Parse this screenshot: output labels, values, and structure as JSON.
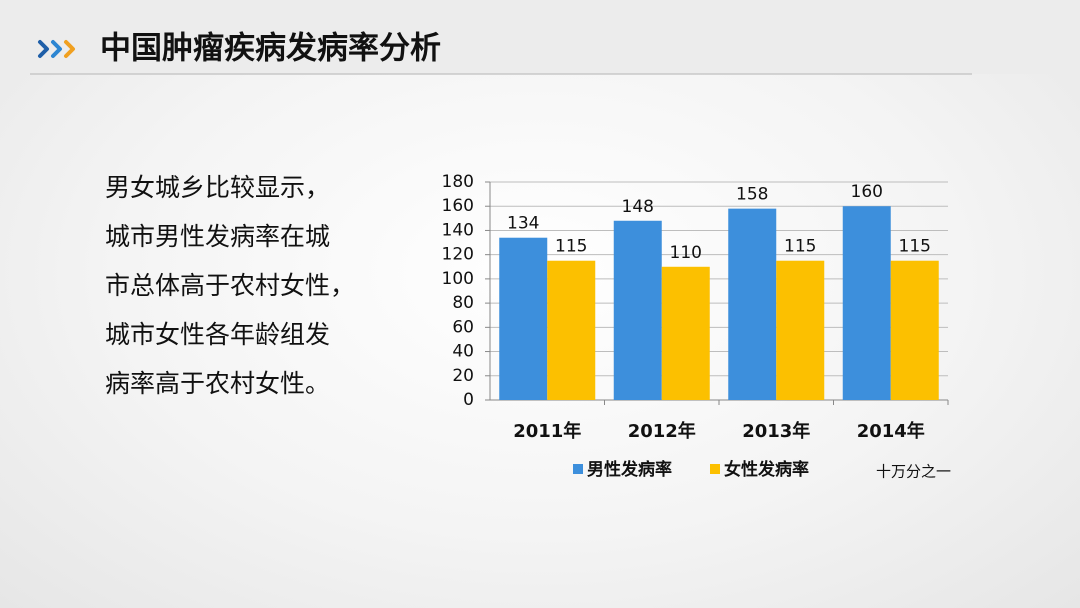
{
  "slide": {
    "title": "中国肿瘤疾病发病率分析",
    "text": [
      "男女城乡比较显示，",
      "城市男性发病率在城",
      "市总体高于农村女性，",
      "城市女性各年龄组发",
      "病率高于农村女性。"
    ]
  },
  "chart_data": {
    "type": "bar",
    "categories": [
      "2011年",
      "2012年",
      "2013年",
      "2014年"
    ],
    "series": [
      {
        "name": "男性发病率",
        "color": "#3d8fdc",
        "values": [
          134,
          148,
          158,
          160
        ]
      },
      {
        "name": "女性发病率",
        "color": "#fcc000",
        "values": [
          115,
          110,
          115,
          115
        ]
      }
    ],
    "ylim": [
      0,
      180
    ],
    "yticks": [
      0,
      20,
      40,
      60,
      80,
      100,
      120,
      140,
      160,
      180
    ],
    "grid": true,
    "legend": "bottom",
    "annotation": "十万分之一"
  }
}
